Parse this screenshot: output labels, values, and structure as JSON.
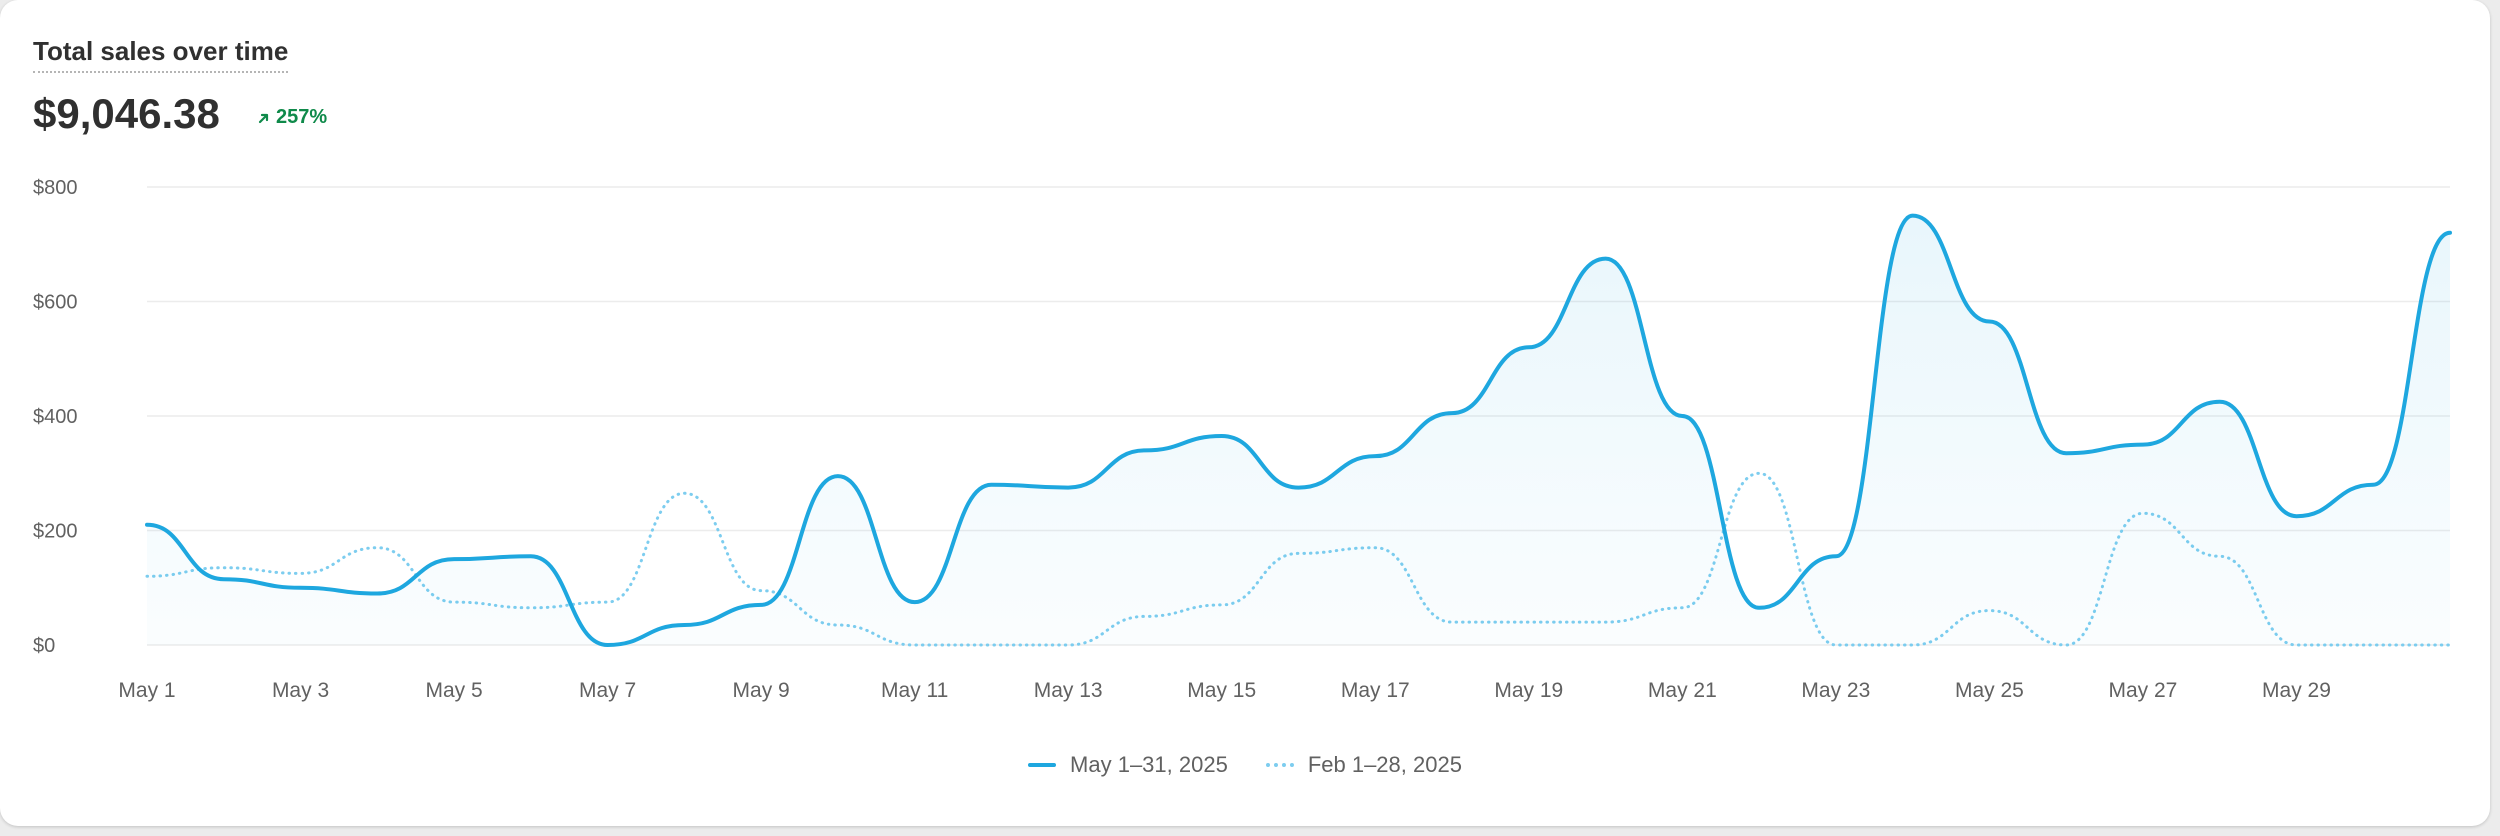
{
  "header": {
    "title": "Total sales over time",
    "total": "$9,046.38",
    "change": "257%"
  },
  "colors": {
    "primary": "#1ea7df",
    "comparison": "#7dcdef",
    "positive": "#0f8a4a"
  },
  "chart_data": {
    "type": "line",
    "title": "Total sales over time",
    "xlabel": "",
    "ylabel": "",
    "ylim": [
      0,
      800
    ],
    "yticks": [
      0,
      200,
      400,
      600,
      800
    ],
    "ytick_labels": [
      "$0",
      "$200",
      "$400",
      "$600",
      "$800"
    ],
    "x": [
      "May 1",
      "May 2",
      "May 3",
      "May 4",
      "May 5",
      "May 6",
      "May 7",
      "May 8",
      "May 9",
      "May 10",
      "May 11",
      "May 12",
      "May 13",
      "May 14",
      "May 15",
      "May 16",
      "May 17",
      "May 18",
      "May 19",
      "May 20",
      "May 21",
      "May 22",
      "May 23",
      "May 24",
      "May 25",
      "May 26",
      "May 27",
      "May 28",
      "May 29",
      "May 30",
      "May 31"
    ],
    "xtick_labels": [
      "May 1",
      "May 3",
      "May 5",
      "May 7",
      "May 9",
      "May 11",
      "May 13",
      "May 15",
      "May 17",
      "May 19",
      "May 21",
      "May 23",
      "May 25",
      "May 27",
      "May 29"
    ],
    "grid": true,
    "legend_position": "bottom-center",
    "series": [
      {
        "name": "May 1–31, 2025",
        "style": "solid",
        "area": true,
        "values": [
          210,
          115,
          100,
          90,
          150,
          155,
          0,
          35,
          70,
          295,
          75,
          280,
          275,
          340,
          365,
          275,
          330,
          405,
          520,
          675,
          400,
          65,
          155,
          750,
          565,
          335,
          350,
          425,
          225,
          280,
          720
        ]
      },
      {
        "name": "Feb 1–28, 2025",
        "style": "dotted",
        "area": false,
        "values": [
          120,
          135,
          125,
          170,
          75,
          65,
          75,
          265,
          95,
          35,
          0,
          0,
          0,
          50,
          70,
          160,
          170,
          40,
          40,
          40,
          65,
          300,
          0,
          0,
          60,
          0,
          230,
          155,
          0,
          0,
          0
        ]
      }
    ]
  }
}
